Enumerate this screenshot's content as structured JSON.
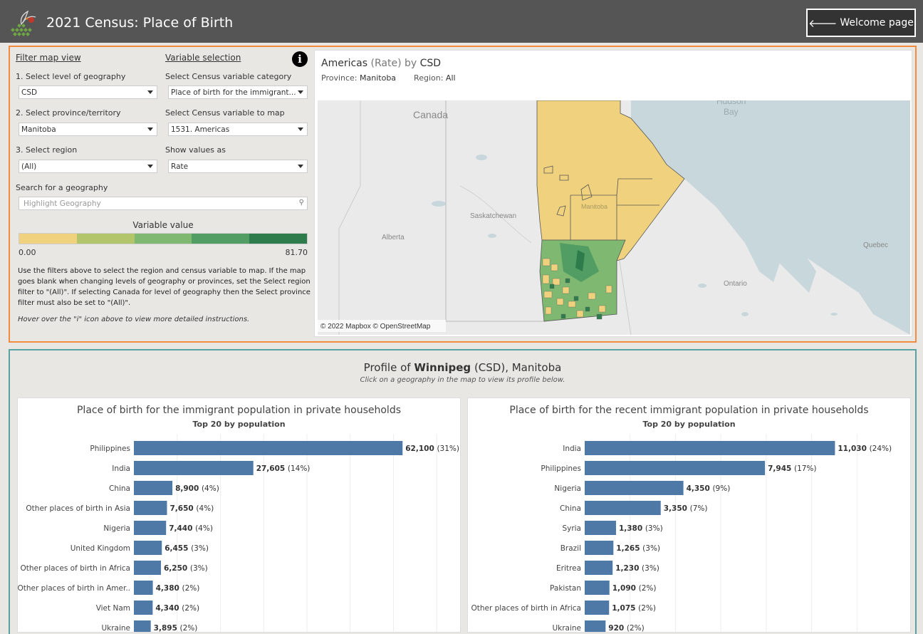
{
  "header": {
    "title": "2021 Census: Place of Birth",
    "welcome_label": "Welcome page",
    "welcome_arrow": "🡐"
  },
  "filters": {
    "filter_header": "Filter map view",
    "variable_header": "Variable selection",
    "geo_level_label": "1. Select level of geography",
    "geo_level_value": "CSD",
    "province_label": "2. Select province/territory",
    "province_value": "Manitoba",
    "region_label": "3. Select region",
    "region_value": "(All)",
    "category_label": "Select Census variable category",
    "category_value": "Place of birth for the immigrant...",
    "variable_label": "Select Census variable to map",
    "variable_value": "1531.  Americas",
    "show_as_label": "Show values as",
    "show_as_value": "Rate",
    "search_label": "Search for a geography",
    "search_placeholder": "Highlight Geography",
    "info_icon": "i"
  },
  "legend": {
    "title": "Variable value",
    "min": "0.00",
    "max": "81.70",
    "colors": [
      "#f0d27e",
      "#b3c56a",
      "#7fb971",
      "#519d63",
      "#2e7b4b"
    ]
  },
  "instructions": "Use the filters above to select the region and census variable to map. If the map goes blank when changing levels of geography or provinces, set the Select region filter to \"(All)\". If selecting Canada for level of geography then the Select province filter must also be set to \"(All)\".",
  "hover_note": "Hover over the \"i\" icon above to view more detailed instructions.",
  "map": {
    "title_variable": "Americas",
    "title_measure": "(Rate)",
    "title_by": "by",
    "title_level": "CSD",
    "province_label": "Province:",
    "province_value": "Manitoba",
    "region_label": "Region:",
    "region_value": "All",
    "attribution": "© 2022 Mapbox © OpenStreetMap",
    "places": {
      "canada": "Canada",
      "hudson": "Hudson",
      "bay": "Bay",
      "saskatchewan": "Saskatchewan",
      "alberta": "Alberta",
      "manitoba": "Manitoba",
      "quebec": "Quebec",
      "ontario": "Ontario"
    }
  },
  "profile": {
    "prefix": "Profile of",
    "name": "Winnipeg",
    "suffix": "(CSD), Manitoba",
    "hint": "Click on a geography in the map to view its profile below."
  },
  "charts": [
    {
      "title": "Place of birth for the immigrant population in private households",
      "subtitle": "Top 20 by population",
      "bar_color": "#4e79a7",
      "axis_max": 80000,
      "grid_step": 10000,
      "rows": [
        {
          "label": "Philippines",
          "value": 62100,
          "text": "62,100",
          "pct": "(31%)"
        },
        {
          "label": "India",
          "value": 27605,
          "text": "27,605",
          "pct": "(14%)"
        },
        {
          "label": "China",
          "value": 8900,
          "text": "8,900",
          "pct": "(4%)"
        },
        {
          "label": "Other places of birth in Asia",
          "value": 7650,
          "text": "7,650",
          "pct": "(4%)"
        },
        {
          "label": "Nigeria",
          "value": 7440,
          "text": "7,440",
          "pct": "(4%)"
        },
        {
          "label": "United Kingdom",
          "value": 6455,
          "text": "6,455",
          "pct": "(3%)"
        },
        {
          "label": "Other places of birth in Africa",
          "value": 6250,
          "text": "6,250",
          "pct": "(3%)"
        },
        {
          "label": "Other places of birth in Amer..",
          "value": 4380,
          "text": "4,380",
          "pct": "(2%)"
        },
        {
          "label": "Viet Nam",
          "value": 4340,
          "text": "4,340",
          "pct": "(2%)"
        },
        {
          "label": "Ukraine",
          "value": 3895,
          "text": "3,895",
          "pct": "(2%)"
        }
      ]
    },
    {
      "title": "Place of birth for the recent immigrant population in private households",
      "subtitle": "Top 20 by population",
      "bar_color": "#4e79a7",
      "axis_max": 14000,
      "grid_step": 2000,
      "rows": [
        {
          "label": "India",
          "value": 11030,
          "text": "11,030",
          "pct": "(24%)"
        },
        {
          "label": "Philippines",
          "value": 7945,
          "text": "7,945",
          "pct": "(17%)"
        },
        {
          "label": "Nigeria",
          "value": 4350,
          "text": "4,350",
          "pct": "(9%)"
        },
        {
          "label": "China",
          "value": 3350,
          "text": "3,350",
          "pct": "(7%)"
        },
        {
          "label": "Syria",
          "value": 1380,
          "text": "1,380",
          "pct": "(3%)"
        },
        {
          "label": "Brazil",
          "value": 1265,
          "text": "1,265",
          "pct": "(3%)"
        },
        {
          "label": "Eritrea",
          "value": 1230,
          "text": "1,230",
          "pct": "(3%)"
        },
        {
          "label": "Pakistan",
          "value": 1090,
          "text": "1,090",
          "pct": "(2%)"
        },
        {
          "label": "Other places of birth in Africa",
          "value": 1075,
          "text": "1,075",
          "pct": "(2%)"
        },
        {
          "label": "Ukraine",
          "value": 920,
          "text": "920",
          "pct": "(2%)"
        }
      ]
    }
  ]
}
